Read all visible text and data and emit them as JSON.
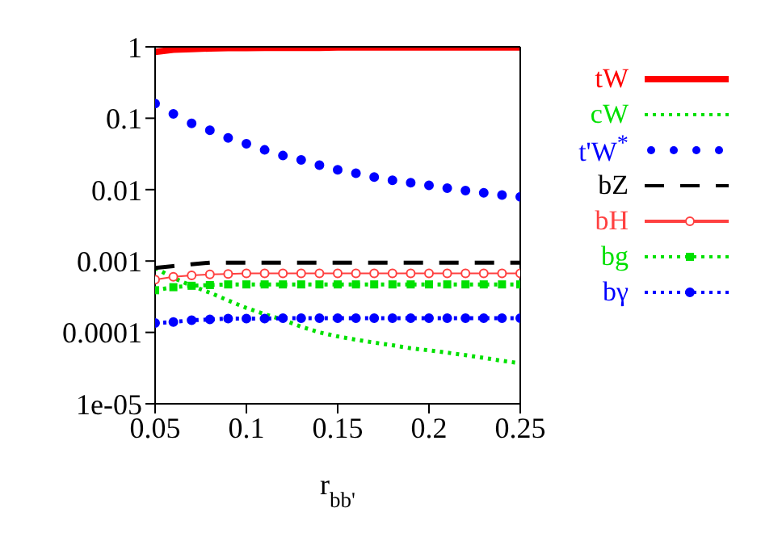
{
  "chart_data": {
    "type": "line",
    "xlabel": "r$_{bb'}$",
    "x": [
      0.05,
      0.06,
      0.07,
      0.08,
      0.09,
      0.1,
      0.11,
      0.12,
      0.13,
      0.14,
      0.15,
      0.16,
      0.17,
      0.18,
      0.19,
      0.2,
      0.21,
      0.22,
      0.23,
      0.24,
      0.25
    ],
    "xlim": [
      0.05,
      0.25
    ],
    "xticks": [
      0.05,
      0.1,
      0.15,
      0.2,
      0.25
    ],
    "ylim": [
      1e-05,
      1
    ],
    "yticks": [
      {
        "value": 1e-05,
        "label": "1e-05"
      },
      0.0001,
      0.001,
      0.01,
      0.1,
      1
    ],
    "log": "y",
    "grid": false,
    "legend": "right",
    "series": [
      {
        "name": "tW",
        "color": "#ff0000",
        "line_style": "solid",
        "marker": "none",
        "values": [
          0.85,
          0.91,
          0.93,
          0.95,
          0.96,
          0.96,
          0.97,
          0.97,
          0.97,
          0.97,
          0.98,
          0.98,
          0.98,
          0.98,
          0.98,
          0.98,
          0.98,
          0.98,
          0.98,
          0.98,
          0.98
        ]
      },
      {
        "name": "cW",
        "color": "#00e000",
        "line_style": "dotted",
        "marker": "none",
        "values": [
          0.0008,
          0.00058,
          0.00045,
          0.00036,
          0.00028,
          0.00022,
          0.00018,
          0.00015,
          0.00012,
          0.0001,
          8.8e-05,
          7.9e-05,
          7.2e-05,
          6.6e-05,
          6e-05,
          5.6e-05,
          5.2e-05,
          4.8e-05,
          4.4e-05,
          4e-05,
          3.7e-05
        ]
      },
      {
        "name": "t'W$^{*}$",
        "type": "scatter",
        "color": "#0000ff",
        "marker": "circle",
        "values": [
          0.16,
          0.115,
          0.085,
          0.068,
          0.053,
          0.044,
          0.036,
          0.03,
          0.026,
          0.022,
          0.019,
          0.017,
          0.015,
          0.0135,
          0.0125,
          0.0115,
          0.0105,
          0.0097,
          0.009,
          0.0084,
          0.0079
        ]
      },
      {
        "name": "bZ",
        "color": "#000000",
        "line_style": "dashed",
        "marker": "none",
        "values": [
          0.0008,
          0.00085,
          0.0009,
          0.00095,
          0.00095,
          0.00095,
          0.00095,
          0.00095,
          0.00095,
          0.00095,
          0.00095,
          0.00095,
          0.00095,
          0.00095,
          0.00095,
          0.00095,
          0.00095,
          0.00095,
          0.00095,
          0.00095,
          0.00095
        ]
      },
      {
        "name": "bH",
        "color": "#ff4040",
        "line_style": "solid",
        "marker": "circle",
        "values": [
          0.00055,
          0.0006,
          0.00063,
          0.00065,
          0.00066,
          0.00067,
          0.00067,
          0.00067,
          0.00067,
          0.00067,
          0.00067,
          0.00067,
          0.00067,
          0.00067,
          0.00067,
          0.00067,
          0.00067,
          0.00067,
          0.00067,
          0.00067,
          0.00067
        ]
      },
      {
        "name": "bg",
        "color": "#00e000",
        "line_style": "dotted",
        "marker": "square",
        "values": [
          0.00039,
          0.00043,
          0.00045,
          0.00046,
          0.00047,
          0.00047,
          0.00047,
          0.00047,
          0.00047,
          0.00047,
          0.00047,
          0.00047,
          0.00047,
          0.00047,
          0.00047,
          0.00047,
          0.00047,
          0.00047,
          0.00047,
          0.00047,
          0.00047
        ]
      },
      {
        "name": "bγ",
        "color": "#0000ff",
        "line_style": "dotted",
        "marker": "circle",
        "values": [
          0.000135,
          0.00014,
          0.000148,
          0.000152,
          0.000156,
          0.000156,
          0.000156,
          0.000158,
          0.000158,
          0.000158,
          0.000158,
          0.000158,
          0.000158,
          0.000158,
          0.000158,
          0.000158,
          0.000158,
          0.000158,
          0.000158,
          0.000158,
          0.000158
        ]
      }
    ]
  }
}
